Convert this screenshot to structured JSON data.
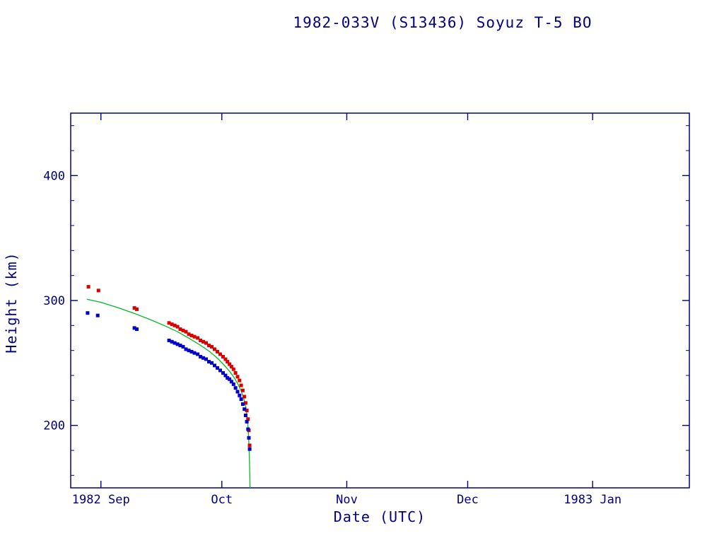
{
  "chart_data": {
    "type": "scatter",
    "title": "1982-033V (S13436) Soyuz T-5 BO",
    "xlabel": "Date (UTC)",
    "ylabel": "Height (km)",
    "x_unit": "days since 1982 Sep 1 (UTC)",
    "xlim": [
      -7.5,
      146
    ],
    "ylim": [
      150,
      450
    ],
    "y_ticks": [
      200,
      300,
      400
    ],
    "y_minor_step": 20,
    "x_ticks": [
      {
        "v": 0,
        "label": "1982 Sep"
      },
      {
        "v": 30,
        "label": "Oct"
      },
      {
        "v": 61,
        "label": "Nov"
      },
      {
        "v": 91,
        "label": "Dec"
      },
      {
        "v": 122,
        "label": "1983 Jan"
      }
    ],
    "grid": false,
    "legend": "none",
    "colors": {
      "frame": "#000080",
      "text": "#000080",
      "apogee": "#dd0000",
      "perigee": "#0000cc",
      "model": "#00bb22",
      "background": "#ffffff"
    },
    "series": [
      {
        "name": "decay-model",
        "type": "line",
        "color": "#00bb22",
        "points": [
          [
            -3.5,
            301
          ],
          [
            0,
            298.5
          ],
          [
            4,
            294.5
          ],
          [
            8,
            290
          ],
          [
            12,
            285
          ],
          [
            16,
            279.5
          ],
          [
            19,
            275
          ],
          [
            22,
            269.5
          ],
          [
            25,
            263.5
          ],
          [
            27,
            259
          ],
          [
            29,
            253.5
          ],
          [
            30.5,
            248.5
          ],
          [
            32,
            243
          ],
          [
            33,
            238.5
          ],
          [
            34,
            233
          ],
          [
            34.8,
            227.5
          ],
          [
            35.4,
            222
          ],
          [
            35.9,
            215.5
          ],
          [
            36.2,
            209
          ],
          [
            36.45,
            201
          ],
          [
            36.6,
            193
          ],
          [
            36.75,
            183
          ],
          [
            36.85,
            172
          ],
          [
            36.95,
            158
          ],
          [
            37.0,
            150
          ]
        ]
      },
      {
        "name": "apogee-height",
        "type": "scatter",
        "marker": "square",
        "color": "#dd0000",
        "points": [
          [
            -3.1,
            311
          ],
          [
            -0.6,
            308
          ],
          [
            8.3,
            294
          ],
          [
            8.9,
            293
          ],
          [
            16.9,
            282
          ],
          [
            17.6,
            281
          ],
          [
            18.3,
            280
          ],
          [
            19.0,
            279
          ],
          [
            19.7,
            277
          ],
          [
            20.4,
            276
          ],
          [
            21.1,
            275
          ],
          [
            21.8,
            273
          ],
          [
            22.5,
            272
          ],
          [
            23.2,
            271
          ],
          [
            24.0,
            270
          ],
          [
            24.7,
            268
          ],
          [
            25.4,
            267
          ],
          [
            26.1,
            266
          ],
          [
            26.8,
            264
          ],
          [
            27.5,
            263
          ],
          [
            28.2,
            261
          ],
          [
            28.9,
            259
          ],
          [
            29.6,
            257
          ],
          [
            30.3,
            255
          ],
          [
            30.9,
            253
          ],
          [
            31.4,
            251
          ],
          [
            31.9,
            249
          ],
          [
            32.4,
            247
          ],
          [
            32.9,
            245
          ],
          [
            33.4,
            242
          ],
          [
            33.9,
            239
          ],
          [
            34.4,
            236
          ],
          [
            34.8,
            232
          ],
          [
            35.2,
            228
          ],
          [
            35.6,
            223
          ],
          [
            35.9,
            218
          ],
          [
            36.2,
            212
          ],
          [
            36.5,
            205
          ],
          [
            36.7,
            196
          ],
          [
            36.9,
            184
          ]
        ]
      },
      {
        "name": "perigee-height",
        "type": "scatter",
        "marker": "square",
        "color": "#0000cc",
        "points": [
          [
            -3.3,
            290
          ],
          [
            -0.8,
            288
          ],
          [
            8.3,
            278
          ],
          [
            8.9,
            277
          ],
          [
            16.9,
            268
          ],
          [
            17.6,
            267
          ],
          [
            18.3,
            266
          ],
          [
            19.0,
            265
          ],
          [
            19.7,
            264
          ],
          [
            20.4,
            263
          ],
          [
            21.1,
            261
          ],
          [
            21.8,
            260
          ],
          [
            22.5,
            259
          ],
          [
            23.2,
            258
          ],
          [
            24.0,
            257
          ],
          [
            24.7,
            255
          ],
          [
            25.4,
            254
          ],
          [
            26.1,
            253
          ],
          [
            26.8,
            251
          ],
          [
            27.5,
            250
          ],
          [
            28.2,
            248
          ],
          [
            28.9,
            246
          ],
          [
            29.6,
            244
          ],
          [
            30.3,
            242
          ],
          [
            30.9,
            240
          ],
          [
            31.4,
            238
          ],
          [
            31.9,
            237
          ],
          [
            32.4,
            235
          ],
          [
            32.9,
            233
          ],
          [
            33.4,
            230
          ],
          [
            33.9,
            227
          ],
          [
            34.4,
            224
          ],
          [
            34.8,
            221
          ],
          [
            35.2,
            217
          ],
          [
            35.6,
            213
          ],
          [
            35.9,
            208
          ],
          [
            36.2,
            203
          ],
          [
            36.5,
            197
          ],
          [
            36.7,
            190
          ],
          [
            36.9,
            181
          ]
        ]
      }
    ]
  }
}
